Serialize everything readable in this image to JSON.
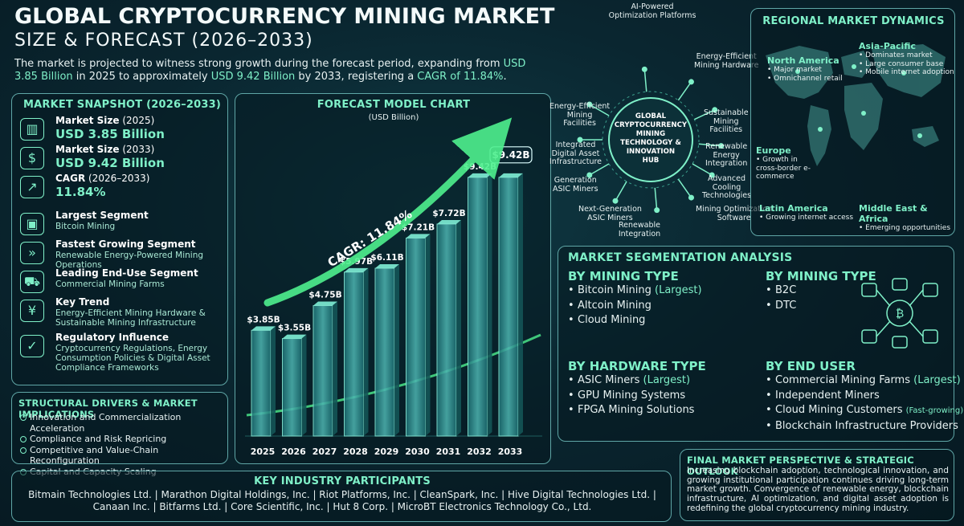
{
  "header": {
    "title": "GLOBAL CRYPTOCURRENCY MINING MARKET",
    "subtitle": "SIZE & FORECAST (2026–2033)",
    "intro_pre": "The market is projected to witness strong growth during the forecast period, expanding from ",
    "intro_v1": "USD 3.85 Billion",
    "intro_mid": " in 2025 to approximately ",
    "intro_v2": "USD 9.42 Billion",
    "intro_post": " by 2033, registering a ",
    "intro_v3": "CAGR of 11.84%",
    "intro_end": "."
  },
  "snapshot": {
    "title": "MARKET SNAPSHOT (2026–2033)",
    "items": [
      {
        "icon": "bar-chart-icon",
        "glyph": "▥",
        "label": "Market Size",
        "label2": " (2025)",
        "value": "USD 3.85 Billion"
      },
      {
        "icon": "coins-icon",
        "glyph": "$",
        "label": "Market Size",
        "label2": " (2033)",
        "value": "USD 9.42 Billion"
      },
      {
        "icon": "growth-chart-icon",
        "glyph": "↗",
        "label": "CAGR",
        "label2": " (2026–2033)",
        "value": "11.84%"
      },
      {
        "icon": "mining-rig-icon",
        "glyph": "▣",
        "label": "Largest Segment",
        "text": "Bitcoin Mining"
      },
      {
        "icon": "runner-icon",
        "glyph": "»",
        "label": "Fastest Growing Segment",
        "text": "Renewable Energy-Powered Mining Operations"
      },
      {
        "icon": "truck-icon",
        "glyph": "⛟",
        "label": "Leading End-Use Segment",
        "text": "Commercial Mining Farms"
      },
      {
        "icon": "trend-icon",
        "glyph": "¥",
        "label": "Key Trend",
        "text": "Energy-Efficient Mining Hardware & Sustainable Mining Infrastructure"
      },
      {
        "icon": "regulation-icon",
        "glyph": "✓",
        "label": "Regulatory Influence",
        "text": "Cryptocurrency Regulations, Energy Consumption Policies & Digital Asset Compliance Frameworks"
      }
    ]
  },
  "drivers": {
    "title": "STRUCTURAL DRIVERS & MARKET IMPLICATIONS",
    "items": [
      "Innovation and Commercialization Acceleration",
      "Compliance and Risk Repricing",
      "Competitive and Value-Chain Reconfiguration",
      "Capital and Capacity Scaling"
    ]
  },
  "chart_data": {
    "type": "bar",
    "title": "FORECAST MODEL CHART",
    "subtitle": "(USD Billion)",
    "categories": [
      "2025",
      "2026",
      "2027",
      "2028",
      "2029",
      "2030",
      "2031",
      "2032",
      "2033"
    ],
    "values": [
      3.85,
      3.55,
      4.75,
      5.97,
      6.11,
      7.21,
      7.72,
      9.42,
      9.42
    ],
    "labels": [
      "$3.85B",
      "$3.55B",
      "$4.75B",
      "$5.97B",
      "$6.11B",
      "$7.21B",
      "$7.72B",
      "$9.42B",
      "$9.42B"
    ],
    "annotation": "CAGR: 11.84%",
    "colors": {
      "bar": "#1d6f73",
      "bar_light": "#4fb7b3",
      "arrow": "#4ef08e",
      "accent": "#7ff0c8"
    }
  },
  "hub": {
    "center": [
      "GLOBAL",
      "CRYPTOCURRENCY",
      "MINING",
      "TECHNOLOGY &",
      "INNOVATION",
      "HUB"
    ],
    "nodes": [
      {
        "name": "hub-node-ai",
        "text": [
          "AI-Powered",
          "Optimization Platforms"
        ]
      },
      {
        "name": "hub-node-energy-hw",
        "text": [
          "Energy-Efficient",
          "Mining Hardware"
        ]
      },
      {
        "name": "hub-node-sustainable",
        "text": [
          "Sustainable",
          "Mining",
          "Facilities"
        ]
      },
      {
        "name": "hub-node-renewable-int",
        "text": [
          "Renewable",
          "Energy",
          "Integration"
        ]
      },
      {
        "name": "hub-node-cooling",
        "text": [
          "Advanced",
          "Cooling",
          "Technologies"
        ]
      },
      {
        "name": "hub-node-mining-opt",
        "text": [
          "Mining Optimization",
          "Software"
        ]
      },
      {
        "name": "hub-node-renewable",
        "text": [
          "Renewable",
          "Integration"
        ]
      },
      {
        "name": "hub-node-nextgen",
        "text": [
          "Next-Generation",
          "ASIC Miners"
        ]
      },
      {
        "name": "hub-node-gen-asic",
        "text": [
          "Generation",
          "ASIC Miners"
        ]
      },
      {
        "name": "hub-node-integrated",
        "text": [
          "Integrated",
          "Digital Asset",
          "Infrastructure"
        ]
      },
      {
        "name": "hub-node-energy-fac",
        "text": [
          "Energy-Efficient",
          "Mining",
          "Facilities"
        ]
      }
    ]
  },
  "regional": {
    "title": "REGIONAL MARKET DYNAMICS",
    "regions": [
      {
        "name": "North America",
        "items": [
          "Major market",
          "Omnichannel retail"
        ]
      },
      {
        "name": "Asia-Pacific",
        "items": [
          "Dominates market",
          "Large consumer base",
          "Mobile internet adoption"
        ]
      },
      {
        "name": "Europe",
        "items": [
          "Growth in cross-border e-commerce"
        ]
      },
      {
        "name": "Latin America",
        "items": [
          "Growing internet access"
        ]
      },
      {
        "name": "Middle East & Africa",
        "items": [
          "Emerging opportunities"
        ]
      }
    ]
  },
  "segmentation": {
    "title": "MARKET SEGMENTATION ANALYSIS",
    "groups": [
      {
        "heading": "BY MINING TYPE",
        "items": [
          {
            "t": "Bitcoin Mining ",
            "n": "(Largest)"
          },
          {
            "t": "Altcoin Mining"
          },
          {
            "t": "Cloud Mining"
          }
        ]
      },
      {
        "heading": "BY MINING TYPE",
        "items": [
          {
            "t": "B2C"
          },
          {
            "t": "DTC"
          }
        ]
      },
      {
        "heading": "BY HARDWARE TYPE",
        "items": [
          {
            "t": "ASIC Miners ",
            "n": "(Largest)"
          },
          {
            "t": "GPU Mining Systems"
          },
          {
            "t": "FPGA Mining Solutions"
          }
        ]
      },
      {
        "heading": "BY END USER",
        "items": [
          {
            "t": "Commercial Mining Farms ",
            "n": "(Largest)"
          },
          {
            "t": "Independent Miners"
          },
          {
            "t": "Cloud Mining Customers ",
            "ns": "(Fast-growing)"
          },
          {
            "t": "Blockchain Infrastructure Providers"
          }
        ]
      }
    ]
  },
  "outlook": {
    "title": "FINAL MARKET PERSPECTIVE & STRATEGIC OUTLOOK",
    "text": "Increasing blockchain adoption, technological innovation, and growing institutional participation continues driving long-term market growth. Convergence of renewable energy, blockchain infrastructure, AI optimization, and digital asset adoption is redefining the global cryptocurrency mining industry."
  },
  "participants": {
    "title": "KEY INDUSTRY PARTICIPANTS",
    "line1": "Bitmain Technologies Ltd.  |  Marathon Digital Holdings, Inc.  |  Riot Platforms, Inc.  |  CleanSpark, Inc.  |  Hive Digital Technologies Ltd.  |",
    "line2": "Canaan Inc.  |  Bitfarms Ltd.  |  Core Scientific, Inc.  |  Hut 8 Corp.  |  MicroBT Electronics Technology Co., Ltd."
  }
}
